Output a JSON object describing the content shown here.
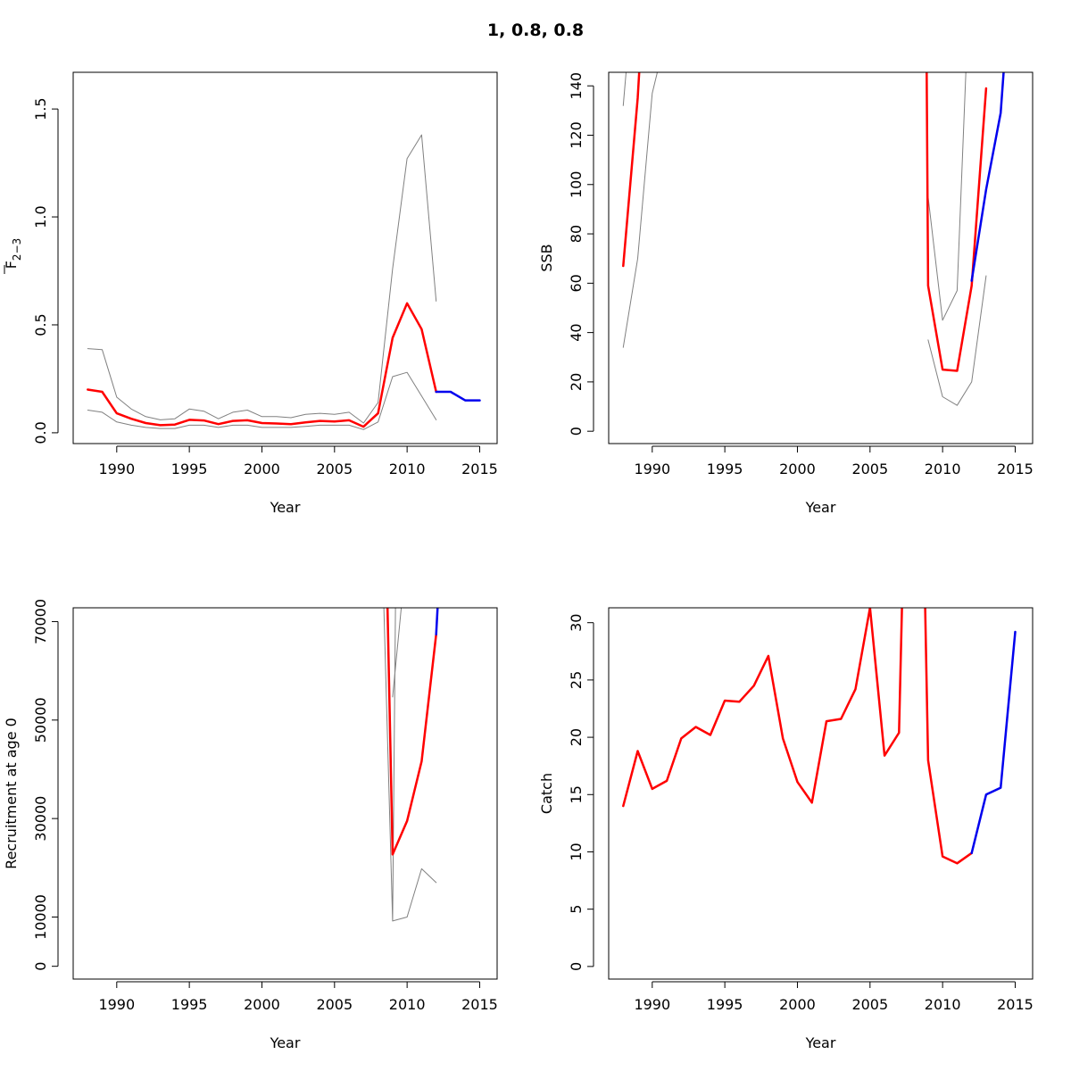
{
  "title": "1, 0.8, 0.8",
  "colors": {
    "est": "#ff0000",
    "proj": "#0000ee",
    "ci": "#808080"
  },
  "chart_data": [
    {
      "type": "line",
      "panel": "top-left",
      "xlabel": "Year",
      "ylabel": "F",
      "ylabel_sub": "2−3",
      "xlim": [
        1987,
        2016.2
      ],
      "ylim": [
        -0.05,
        1.67
      ],
      "xticks": [
        "1990",
        "1995",
        "2000",
        "2005",
        "2010",
        "2015"
      ],
      "yticks": [
        "0.0",
        "0.5",
        "1.0",
        "1.5"
      ],
      "series": [
        {
          "role": "upper",
          "x": [
            1988,
            1989,
            1990,
            1991,
            1992,
            1993,
            1994,
            1995,
            1996,
            1997,
            1998,
            1999,
            2000,
            2001,
            2002,
            2003,
            2004,
            2005,
            2006,
            2007,
            2008,
            2009,
            2010,
            2011,
            2012
          ],
          "y": [
            0.39,
            0.385,
            0.165,
            0.11,
            0.075,
            0.06,
            0.065,
            0.11,
            0.1,
            0.065,
            0.095,
            0.105,
            0.075,
            0.075,
            0.07,
            0.085,
            0.09,
            0.085,
            0.095,
            0.045,
            0.14,
            0.76,
            1.27,
            1.38,
            0.61
          ]
        },
        {
          "role": "lower",
          "x": [
            1988,
            1989,
            1990,
            1991,
            1992,
            1993,
            1994,
            1995,
            1996,
            1997,
            1998,
            1999,
            2000,
            2001,
            2002,
            2003,
            2004,
            2005,
            2006,
            2007,
            2008,
            2009,
            2010,
            2011,
            2012
          ],
          "y": [
            0.105,
            0.095,
            0.05,
            0.035,
            0.025,
            0.02,
            0.02,
            0.035,
            0.035,
            0.025,
            0.035,
            0.035,
            0.025,
            0.025,
            0.025,
            0.03,
            0.035,
            0.035,
            0.035,
            0.015,
            0.05,
            0.26,
            0.28,
            0.17,
            0.06
          ]
        },
        {
          "role": "estimate",
          "x": [
            1988,
            1989,
            1990,
            1991,
            1992,
            1993,
            1994,
            1995,
            1996,
            1997,
            1998,
            1999,
            2000,
            2001,
            2002,
            2003,
            2004,
            2005,
            2006,
            2007,
            2008,
            2009,
            2010,
            2011,
            2012
          ],
          "y": [
            0.2,
            0.19,
            0.09,
            0.065,
            0.045,
            0.035,
            0.038,
            0.06,
            0.057,
            0.04,
            0.055,
            0.058,
            0.045,
            0.043,
            0.04,
            0.048,
            0.055,
            0.052,
            0.058,
            0.028,
            0.09,
            0.44,
            0.6,
            0.48,
            0.19
          ]
        },
        {
          "role": "projection",
          "x": [
            2012,
            2013,
            2014,
            2015
          ],
          "y": [
            0.19,
            0.19,
            0.15,
            0.15
          ]
        }
      ]
    },
    {
      "type": "line",
      "panel": "top-right",
      "xlabel": "Year",
      "ylabel": "SSB",
      "xlim": [
        1987,
        2016.2
      ],
      "ylim": [
        -5,
        145.5
      ],
      "xticks": [
        "1990",
        "1995",
        "2000",
        "2005",
        "2010",
        "2015"
      ],
      "yticks": [
        "0",
        "20",
        "40",
        "60",
        "80",
        "100",
        "120",
        "140"
      ],
      "series": [
        {
          "role": "upper",
          "x": [
            1988,
            1988.2
          ],
          "y": [
            132,
            145.5
          ]
        },
        {
          "role": "upper",
          "x": [
            2009,
            2010,
            2011,
            2011.6
          ],
          "y": [
            95,
            45,
            57,
            145.5
          ]
        },
        {
          "role": "lower",
          "x": [
            1988,
            1989,
            1990,
            1990.35
          ],
          "y": [
            34,
            70,
            137,
            145.5
          ]
        },
        {
          "role": "lower",
          "x": [
            2009,
            2010,
            2011,
            2012,
            2013
          ],
          "y": [
            37,
            14,
            10.5,
            20,
            63
          ]
        },
        {
          "role": "estimate",
          "x": [
            1988,
            1989,
            1989.1
          ],
          "y": [
            67,
            135,
            145.5
          ]
        },
        {
          "role": "estimate",
          "x": [
            2008.9,
            2009,
            2010,
            2011,
            2012,
            2013
          ],
          "y": [
            145.5,
            59,
            25,
            24.5,
            59,
            139
          ]
        },
        {
          "role": "projection",
          "x": [
            2012,
            2013,
            2014,
            2014.2
          ],
          "y": [
            61,
            98,
            129,
            145.5
          ]
        }
      ]
    },
    {
      "type": "line",
      "panel": "bottom-left",
      "xlabel": "Year",
      "ylabel": "Recruitment at age 0",
      "xlim": [
        1987,
        2016.2
      ],
      "ylim": [
        -2600,
        72800
      ],
      "xticks": [
        "1990",
        "1995",
        "2000",
        "2005",
        "2010",
        "2015"
      ],
      "yticks": [
        "0",
        "10000",
        "30000",
        "50000",
        "70000"
      ],
      "series": [
        {
          "role": "upper",
          "x": [
            2008.4,
            2009,
            2009.2
          ],
          "y": [
            72800,
            9200,
            72800
          ]
        },
        {
          "role": "lower",
          "x": [
            2009,
            2009.6
          ],
          "y": [
            54700,
            72800
          ]
        },
        {
          "role": "lower",
          "x": [
            2009,
            2010,
            2011,
            2012
          ],
          "y": [
            9200,
            10000,
            19800,
            17000
          ]
        },
        {
          "role": "estimate",
          "x": [
            2008.65,
            2009,
            2010,
            2011,
            2012
          ],
          "y": [
            72800,
            22700,
            29500,
            41600,
            67400
          ]
        },
        {
          "role": "projection",
          "x": [
            2012,
            2012.1
          ],
          "y": [
            67400,
            72800
          ]
        }
      ]
    },
    {
      "type": "line",
      "panel": "bottom-right",
      "xlabel": "Year",
      "ylabel": "Catch",
      "xlim": [
        1987,
        2016.2
      ],
      "ylim": [
        -1.1,
        31.3
      ],
      "xticks": [
        "1990",
        "1995",
        "2000",
        "2005",
        "2010",
        "2015"
      ],
      "yticks": [
        "0",
        "5",
        "10",
        "15",
        "20",
        "25",
        "30"
      ],
      "series": [
        {
          "role": "estimate",
          "x": [
            1988,
            1989,
            1990,
            1991,
            1992,
            1993,
            1994,
            1995,
            1996,
            1997,
            1998,
            1999,
            2000,
            2001,
            2002,
            2003,
            2004,
            2005,
            2006,
            2007,
            2007.2
          ],
          "y": [
            14,
            18.8,
            15.5,
            16.2,
            19.9,
            20.9,
            20.2,
            23.2,
            23.1,
            24.5,
            27.1,
            19.9,
            16.1,
            14.3,
            21.4,
            21.6,
            24.2,
            31.3,
            18.4,
            20.4,
            31.3
          ]
        },
        {
          "role": "estimate",
          "x": [
            2008.8,
            2009,
            2010,
            2011,
            2012
          ],
          "y": [
            31.3,
            18,
            9.6,
            9,
            9.9
          ]
        },
        {
          "role": "projection",
          "x": [
            2012,
            2013,
            2014,
            2015
          ],
          "y": [
            9.9,
            15,
            15.6,
            29.2
          ]
        }
      ]
    }
  ]
}
